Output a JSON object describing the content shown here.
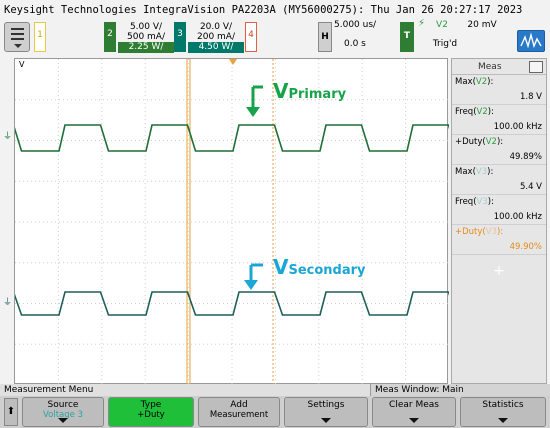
{
  "title": "Keysight Technologies IntegraVision PA2203A (MY56000275): Thu Jan 26 20:27:17 2023",
  "channels": {
    "ch1": {
      "num": "1"
    },
    "ch2": {
      "num": "2",
      "scale": "5.00 V/",
      "current": "500 mA/",
      "power": "2.25 W/"
    },
    "ch3": {
      "num": "3",
      "scale": "20.0 V/",
      "current": "200 mA/",
      "power": "4.50 W/"
    },
    "ch4": {
      "num": "4"
    }
  },
  "horizontal": {
    "label": "H",
    "timebase": "5.000 us/",
    "delay": "0.0 s"
  },
  "trigger": {
    "label": "T",
    "source": "V2",
    "level": "20 mV",
    "status": "Trig'd"
  },
  "plot": {
    "top_label": "V",
    "primary_label": "V",
    "primary_sub": "Primary",
    "secondary_label": "V",
    "secondary_sub": "Secondary",
    "colors": {
      "primary": "#1f6e35",
      "secondary": "#1d5f5a",
      "annotation_primary": "#17a34a",
      "annotation_secondary": "#1ba7d6",
      "cursor": "#e9a23b"
    }
  },
  "meas": {
    "header": "Meas",
    "items": [
      {
        "label_pre": "Max(",
        "src": "V2",
        "label_post": "):",
        "value": "1.8 V",
        "src_class": "g"
      },
      {
        "label_pre": "Freq(",
        "src": "V2",
        "label_post": "):",
        "value": "100.00 kHz",
        "src_class": "g"
      },
      {
        "label_pre": "+Duty(",
        "src": "V2",
        "label_post": "):",
        "value": "49.89%",
        "src_class": "g"
      },
      {
        "label_pre": "Max(",
        "src": "V3",
        "label_post": "):",
        "value": "5.4 V",
        "src_class": "t"
      },
      {
        "label_pre": "Freq(",
        "src": "V3",
        "label_post": "):",
        "value": "100.00 kHz",
        "src_class": "t"
      },
      {
        "label_pre": "+Duty(",
        "src": "V3",
        "label_post": "):",
        "value": "49.90%",
        "src_class": "o"
      }
    ]
  },
  "bottom": {
    "menu_title": "Measurement Menu",
    "meas_window": "Meas Window: Main"
  },
  "softkeys": [
    {
      "label": "Source",
      "sub": "Voltage 3"
    },
    {
      "label": "Type",
      "sub": "+Duty"
    },
    {
      "label": "Add",
      "sub": "Measurement"
    },
    {
      "label": "Settings",
      "sub": ""
    },
    {
      "label": "Clear Meas",
      "sub": ""
    },
    {
      "label": "Statistics",
      "sub": ""
    }
  ]
}
